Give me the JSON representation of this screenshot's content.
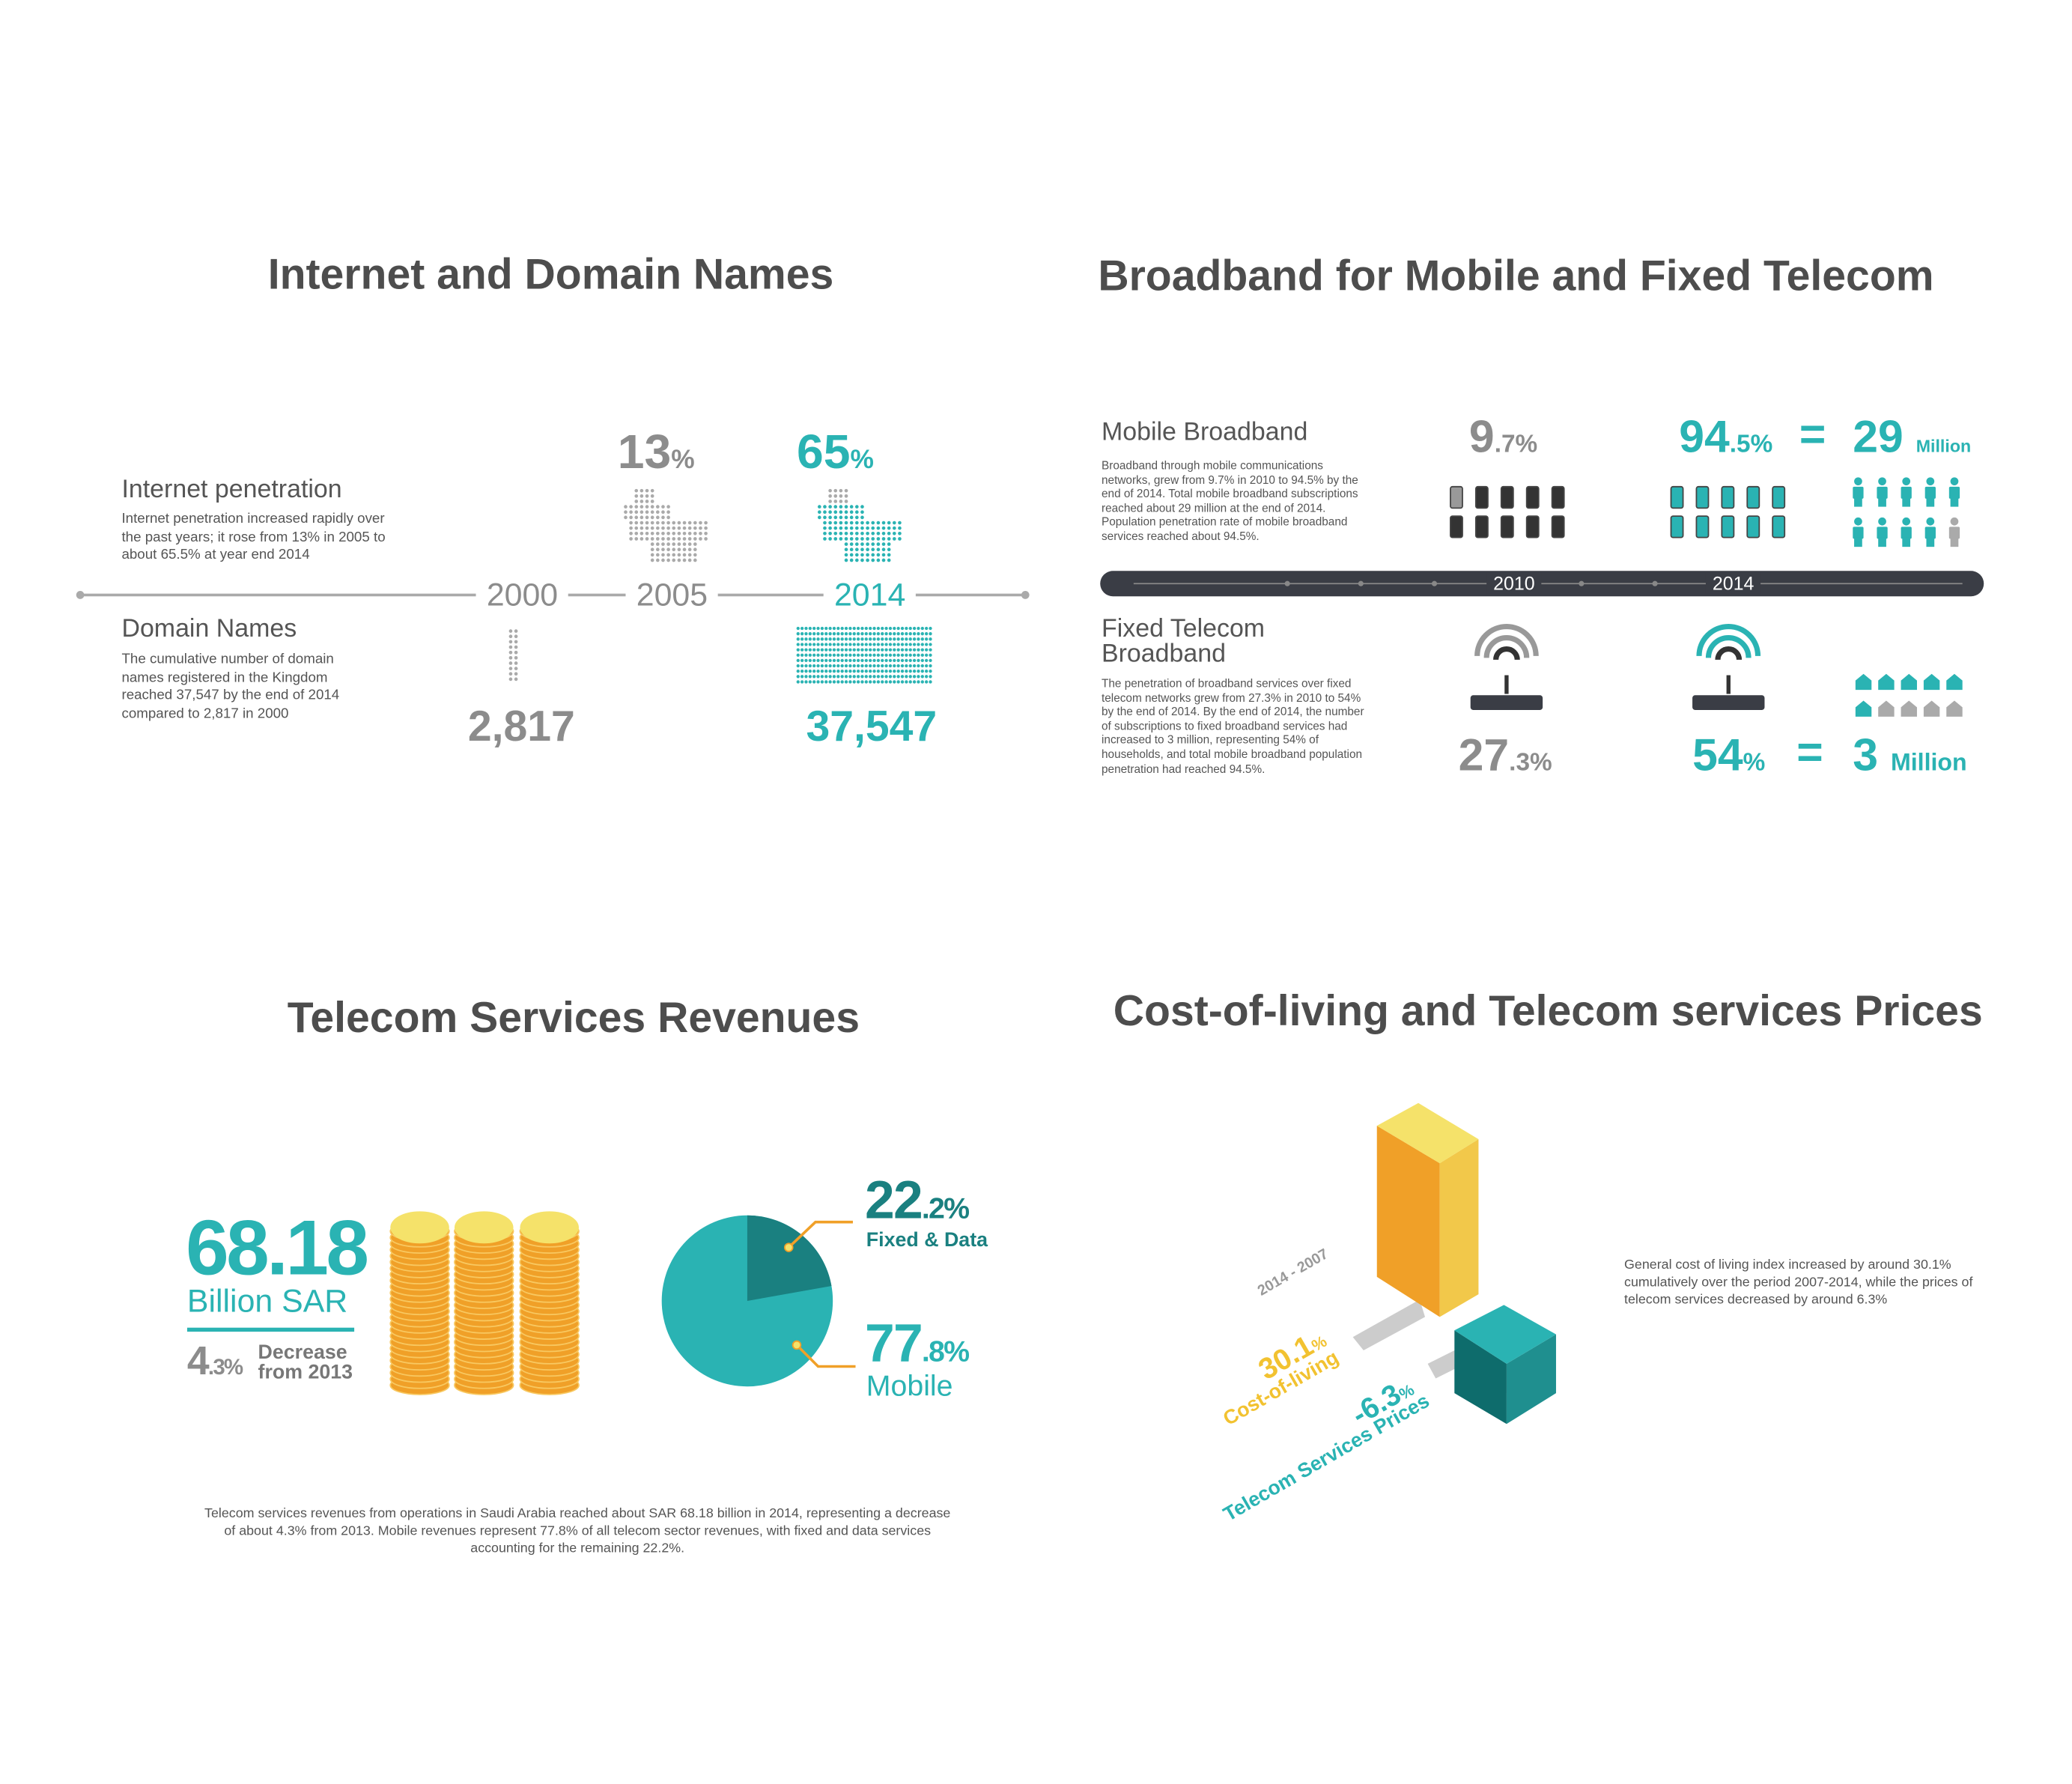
{
  "colors": {
    "teal": "#2ab3b3",
    "dark_teal": "#1a8080",
    "gray": "#8c8c8c",
    "text": "#4d4d4d",
    "orange": "#f0a028",
    "yellow": "#f5e26a"
  },
  "internet": {
    "title": "Internet and Domain Names",
    "penetration": {
      "heading": "Internet penetration",
      "body": "Internet penetration increased rapidly over the past years; it rose from 13% in 2005 to about 65.5% at year end 2014",
      "v2005": "13",
      "v2014": "65.5",
      "pct": "%",
      "v2014_int": "65",
      ".5": ".5"
    },
    "timeline": [
      "2000",
      "2005",
      "2014"
    ],
    "domains": {
      "heading": "Domain Names",
      "body": "The cumulative number of domain names registered in the Kingdom reached 37,547 by the end of 2014 compared to 2,817 in 2000",
      "v2000": "2,817",
      "v2014": "37,547"
    }
  },
  "broadband": {
    "title": "Broadband for Mobile and Fixed Telecom",
    "mobile": {
      "heading": "Mobile Broadband",
      "body": "Broadband through mobile communications networks, grew from 9.7% in 2010 to 94.5% by the end of 2014. Total mobile broadband subscriptions reached about 29 million at the end of 2014. Population penetration rate of mobile broadband services reached about 94.5%.",
      "v2010_int": "9",
      "v2010_dec": ".7",
      "v2014_int": "94",
      "v2014_dec": ".5",
      "pct": "%",
      "eq": "=",
      "subs": "29",
      "subs_unit": "Million",
      "penetration_2010": 0.097,
      "penetration_2014": 0.945
    },
    "timeline": [
      "2010",
      "2014"
    ],
    "fixed": {
      "heading_1": "Fixed Telecom",
      "heading_2": "Broadband",
      "body": "The penetration of broadband services over fixed telecom networks grew from 27.3% in 2010 to 54% by the end of 2014. By the end of 2014, the number of subscriptions to fixed broadband services had increased to 3 million, representing 54% of households, and total mobile broadband population penetration had reached 94.5%.",
      "v2010_int": "27",
      "v2010_dec": ".3",
      "v2014": "54",
      "pct": "%",
      "eq": "=",
      "subs": "3",
      "subs_unit": "Million",
      "households_share": 0.54
    }
  },
  "revenues": {
    "title": "Telecom Services Revenues",
    "total": "68.18",
    "unit": "Billion SAR",
    "change_int": "4",
    "change_dec": ".3",
    "pct": "%",
    "change_label_1": "Decrease",
    "change_label_2": "from 2013",
    "fixed": {
      "value_int": "22",
      "value_dec": ".2",
      "label": "Fixed & Data",
      "share": 22.2
    },
    "mobile": {
      "value_int": "77",
      "value_dec": ".8",
      "label": "Mobile",
      "share": 77.8
    },
    "body": "Telecom services revenues from operations in Saudi Arabia reached about SAR 68.18 billion in 2014, representing a decrease of about 4.3% from 2013. Mobile revenues represent 77.8% of all telecom sector revenues, with fixed and data services accounting for the remaining 22.2%."
  },
  "cost": {
    "title": "Cost-of-living and Telecom services Prices",
    "period": "2014 - 2007",
    "col_value": "30.1",
    "col_label": "Cost-of-living",
    "tel_value": "-6.3",
    "tel_label": "Telecom Services Prices",
    "pct": "%",
    "body": "General cost of living index increased by around 30.1% cumulatively over the period 2007-2014, while the prices of telecom services decreased by around 6.3%"
  }
}
